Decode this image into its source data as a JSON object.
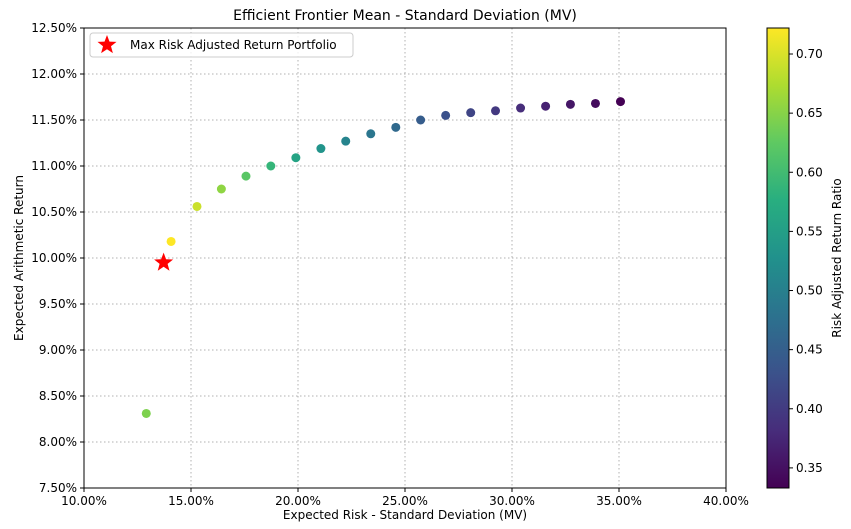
{
  "chart_data": {
    "type": "scatter",
    "title": "Efficient Frontier Mean - Standard Deviation (MV)",
    "xlabel": "Expected Risk - Standard Deviation (MV)",
    "ylabel": "Expected Arithmetic Return",
    "xlim": [
      0.1,
      0.4
    ],
    "ylim": [
      0.075,
      0.125
    ],
    "x_ticks": [
      0.1,
      0.15,
      0.2,
      0.25,
      0.3,
      0.35,
      0.4
    ],
    "x_tick_labels": [
      "10.00%",
      "15.00%",
      "20.00%",
      "25.00%",
      "30.00%",
      "35.00%",
      "40.00%"
    ],
    "y_ticks": [
      0.075,
      0.08,
      0.085,
      0.09,
      0.095,
      0.1,
      0.105,
      0.11,
      0.115,
      0.12,
      0.125
    ],
    "y_tick_labels": [
      "7.50%",
      "8.00%",
      "8.50%",
      "9.00%",
      "9.50%",
      "10.00%",
      "10.50%",
      "11.00%",
      "11.50%",
      "12.00%",
      "12.50%"
    ],
    "grid": true,
    "colorbar": {
      "label": "Risk Adjusted Return Ratio",
      "range": [
        0.333,
        0.722
      ],
      "ticks": [
        0.35,
        0.4,
        0.45,
        0.5,
        0.55,
        0.6,
        0.65,
        0.7
      ],
      "tick_labels": [
        "0.35",
        "0.40",
        "0.45",
        "0.50",
        "0.55",
        "0.60",
        "0.65",
        "0.70"
      ],
      "colormap": "viridis"
    },
    "points": [
      {
        "x": 0.1291,
        "y": 0.0831,
        "c": 0.644
      },
      {
        "x": 0.1407,
        "y": 0.1018,
        "c": 0.722
      },
      {
        "x": 0.1528,
        "y": 0.1056,
        "c": 0.691
      },
      {
        "x": 0.1642,
        "y": 0.1075,
        "c": 0.655
      },
      {
        "x": 0.1757,
        "y": 0.1089,
        "c": 0.62
      },
      {
        "x": 0.1873,
        "y": 0.11,
        "c": 0.588
      },
      {
        "x": 0.199,
        "y": 0.1109,
        "c": 0.558
      },
      {
        "x": 0.2107,
        "y": 0.1119,
        "c": 0.532
      },
      {
        "x": 0.2223,
        "y": 0.1127,
        "c": 0.507
      },
      {
        "x": 0.234,
        "y": 0.1135,
        "c": 0.485
      },
      {
        "x": 0.2457,
        "y": 0.1142,
        "c": 0.465
      },
      {
        "x": 0.2573,
        "y": 0.115,
        "c": 0.447
      },
      {
        "x": 0.269,
        "y": 0.1155,
        "c": 0.429
      },
      {
        "x": 0.2807,
        "y": 0.1158,
        "c": 0.413
      },
      {
        "x": 0.2923,
        "y": 0.116,
        "c": 0.397
      },
      {
        "x": 0.304,
        "y": 0.1163,
        "c": 0.383
      },
      {
        "x": 0.3157,
        "y": 0.1165,
        "c": 0.369
      },
      {
        "x": 0.3273,
        "y": 0.1167,
        "c": 0.356
      },
      {
        "x": 0.339,
        "y": 0.1168,
        "c": 0.345
      },
      {
        "x": 0.3507,
        "y": 0.117,
        "c": 0.333
      }
    ],
    "highlight": {
      "name": "Max Risk Adjusted Return Portfolio",
      "x": 0.1372,
      "y": 0.0995,
      "marker": "star",
      "color": "#ff0000"
    },
    "legend": {
      "position": "top-left",
      "entries": [
        "Max Risk Adjusted Return Portfolio"
      ]
    }
  }
}
